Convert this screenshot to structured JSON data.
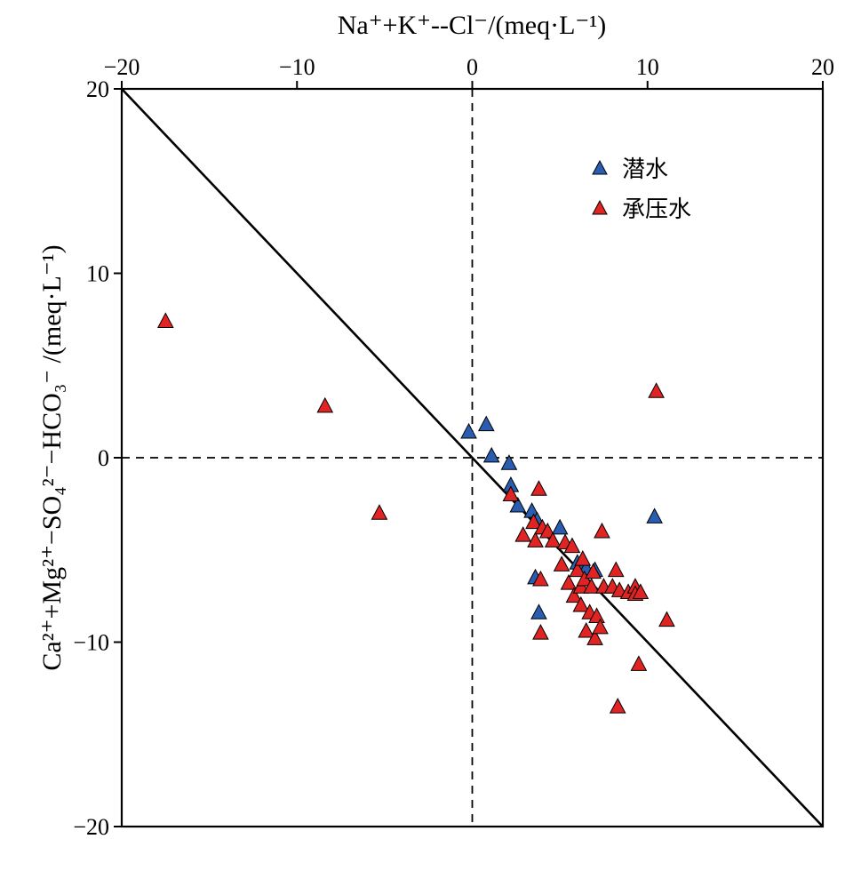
{
  "chart_data": {
    "type": "scatter",
    "title": "",
    "xlabel": "Na⁺+K⁺--Cl⁻/(meq·L⁻¹)",
    "ylabel": "Ca²⁺+Mg²⁺−SO₄²⁻−HCO₃⁻ /(meq·L⁻¹)",
    "xlim": [
      -20,
      20
    ],
    "ylim": [
      -20,
      20
    ],
    "x_ticks": [
      -20,
      -10,
      0,
      10,
      20
    ],
    "y_ticks": [
      20,
      10,
      0,
      -10,
      -20
    ],
    "x_tick_labels": [
      "−20",
      "−10",
      "0",
      "10",
      "20"
    ],
    "y_tick_labels": [
      "20",
      "10",
      "0",
      "−10",
      "−20"
    ],
    "x_axis_position": "top",
    "grid": false,
    "reference_line": {
      "from": [
        -20,
        20
      ],
      "to": [
        20,
        -20
      ],
      "style": "solid"
    },
    "zero_lines": {
      "style": "dashed"
    },
    "legend_position": "top-right",
    "series": [
      {
        "name": "潜水",
        "color": "#2a5db0",
        "marker": "triangle",
        "points": [
          [
            -0.2,
            1.4
          ],
          [
            0.8,
            1.8
          ],
          [
            1.1,
            0.1
          ],
          [
            2.1,
            -0.3
          ],
          [
            2.2,
            -1.5
          ],
          [
            2.6,
            -2.6
          ],
          [
            3.4,
            -2.9
          ],
          [
            3.7,
            -3.4
          ],
          [
            3.6,
            -6.5
          ],
          [
            3.8,
            -8.4
          ],
          [
            5.0,
            -3.8
          ],
          [
            6.0,
            -5.7
          ],
          [
            6.5,
            -6.0
          ],
          [
            7.0,
            -6.1
          ],
          [
            10.4,
            -3.2
          ]
        ]
      },
      {
        "name": "承压水",
        "color": "#e02424",
        "marker": "triangle",
        "points": [
          [
            -17.5,
            7.4
          ],
          [
            -8.4,
            2.8
          ],
          [
            -5.3,
            -3.0
          ],
          [
            10.5,
            3.6
          ],
          [
            2.2,
            -2.0
          ],
          [
            3.5,
            -3.5
          ],
          [
            3.8,
            -1.7
          ],
          [
            4.0,
            -3.8
          ],
          [
            3.6,
            -4.5
          ],
          [
            2.9,
            -4.2
          ],
          [
            4.3,
            -4.0
          ],
          [
            3.9,
            -6.6
          ],
          [
            3.9,
            -9.5
          ],
          [
            4.6,
            -4.5
          ],
          [
            5.1,
            -5.8
          ],
          [
            5.3,
            -4.6
          ],
          [
            5.7,
            -4.8
          ],
          [
            5.5,
            -6.8
          ],
          [
            5.8,
            -7.5
          ],
          [
            6.0,
            -6.1
          ],
          [
            6.3,
            -5.5
          ],
          [
            6.2,
            -7.0
          ],
          [
            6.4,
            -6.6
          ],
          [
            6.2,
            -8.0
          ],
          [
            6.5,
            -9.4
          ],
          [
            6.9,
            -6.2
          ],
          [
            6.8,
            -7.0
          ],
          [
            6.7,
            -8.4
          ],
          [
            7.0,
            -9.8
          ],
          [
            7.1,
            -8.6
          ],
          [
            7.3,
            -9.2
          ],
          [
            7.4,
            -4.0
          ],
          [
            7.5,
            -7.0
          ],
          [
            8.0,
            -7.0
          ],
          [
            8.2,
            -6.1
          ],
          [
            8.4,
            -7.2
          ],
          [
            8.9,
            -7.3
          ],
          [
            9.3,
            -7.0
          ],
          [
            9.3,
            -7.4
          ],
          [
            9.6,
            -7.3
          ],
          [
            9.5,
            -11.2
          ],
          [
            8.3,
            -13.5
          ],
          [
            11.1,
            -8.8
          ]
        ]
      }
    ]
  }
}
